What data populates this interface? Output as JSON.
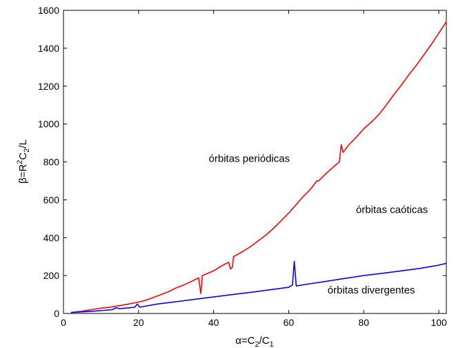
{
  "chart_data": {
    "type": "line",
    "title": "",
    "xlabel": {
      "main": "α=C",
      "sub1": "2",
      "mid": "/C",
      "sub2": "1"
    },
    "ylabel": {
      "main": "β=R",
      "sup": "2",
      "mid": "C",
      "sub": "2",
      "end": "/L"
    },
    "xlim": [
      0,
      102
    ],
    "ylim": [
      0,
      1600
    ],
    "xticks": [
      0,
      20,
      40,
      60,
      80,
      100
    ],
    "yticks": [
      0,
      200,
      400,
      600,
      800,
      1000,
      1200,
      1400,
      1600
    ],
    "grid": false,
    "series": [
      {
        "color": "#ff0000",
        "x": [
          2,
          5,
          8,
          10,
          12,
          14,
          16,
          18,
          20,
          22,
          24,
          26,
          28,
          30,
          32,
          34,
          36,
          36.6,
          37,
          40,
          42,
          44,
          44.5,
          45,
          45.3,
          48,
          50,
          52,
          54,
          56,
          58,
          60,
          62,
          64,
          66,
          67.5,
          68,
          70,
          72,
          73.5,
          74,
          74.5,
          76,
          78,
          80,
          82,
          84,
          86,
          88,
          90,
          92,
          94,
          96,
          98,
          100,
          102
        ],
        "y": [
          5,
          12,
          22,
          28,
          32,
          38,
          45,
          52,
          60,
          70,
          85,
          100,
          115,
          135,
          150,
          168,
          188,
          105,
          200,
          225,
          250,
          270,
          235,
          245,
          300,
          330,
          355,
          385,
          415,
          450,
          490,
          530,
          575,
          620,
          660,
          700,
          700,
          740,
          775,
          800,
          890,
          850,
          890,
          930,
          975,
          1010,
          1050,
          1100,
          1155,
          1205,
          1260,
          1310,
          1365,
          1420,
          1480,
          1540
        ]
      },
      {
        "color": "#0000ff",
        "x": [
          2,
          8,
          13,
          14,
          15,
          19,
          19.7,
          20.3,
          25,
          30,
          35,
          40,
          45,
          50,
          55,
          60,
          61,
          61.5,
          62,
          65,
          70,
          75,
          80,
          85,
          90,
          95,
          100,
          102
        ],
        "y": [
          5,
          12,
          20,
          30,
          25,
          33,
          50,
          33,
          50,
          62,
          75,
          87,
          100,
          112,
          125,
          138,
          150,
          275,
          145,
          155,
          170,
          185,
          200,
          212,
          225,
          238,
          255,
          265
        ]
      }
    ],
    "annotations": [
      {
        "text": "órbitas periódicas",
        "x": 49.5,
        "y": 800
      },
      {
        "text": "órbitas caóticas",
        "x": 87.5,
        "y": 530
      },
      {
        "text": "órbitas divergentes",
        "x": 82,
        "y": 105
      }
    ]
  }
}
